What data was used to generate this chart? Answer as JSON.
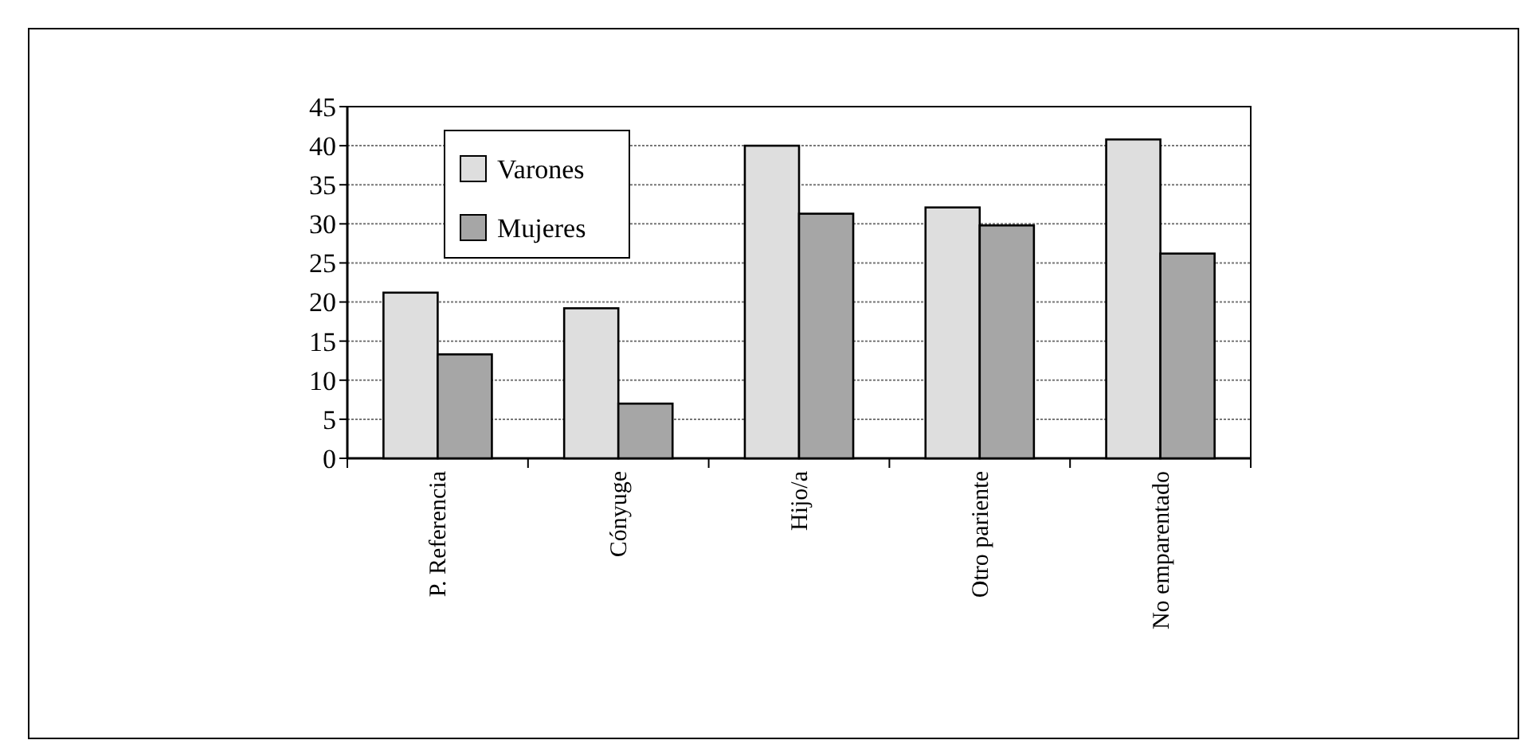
{
  "chart_data": {
    "type": "bar",
    "categories": [
      "P. Referencia",
      "Cónyuge",
      "Hijo/a",
      "Otro pariente",
      "No emparentado"
    ],
    "series": [
      {
        "name": "Varones",
        "color": "#dedede",
        "values": [
          21.2,
          19.2,
          40,
          32.1,
          40.8
        ]
      },
      {
        "name": "Mujeres",
        "color": "#a6a6a6",
        "values": [
          13.3,
          7,
          31.3,
          29.8,
          26.2
        ]
      }
    ],
    "ylim": [
      0,
      45
    ],
    "yticks": [
      0,
      5,
      10,
      15,
      20,
      25,
      30,
      35,
      40,
      45
    ],
    "grid": "y",
    "legend": "top left"
  }
}
